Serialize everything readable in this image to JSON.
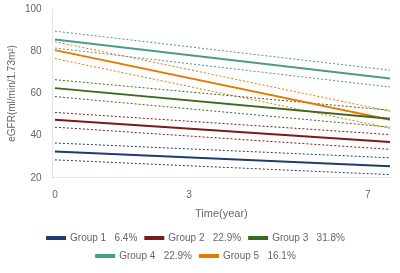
{
  "chart_data": {
    "type": "line",
    "x_label": "Time(year)",
    "y_label": "eGFR(ml/min/1.73m²)",
    "x": [
      0,
      7.5
    ],
    "series": [
      {
        "name": "Group 1   6.4%",
        "color": "#1b3d6e",
        "values": [
          32.5,
          25.5
        ],
        "ci_upper": [
          36.5,
          29.5
        ],
        "ci_lower": [
          28.5,
          21.5
        ]
      },
      {
        "name": "Group 2   22.9%",
        "color": "#7b1a1a",
        "values": [
          47.5,
          37.0
        ],
        "ci_upper": [
          51.0,
          40.5
        ],
        "ci_lower": [
          44.0,
          33.5
        ]
      },
      {
        "name": "Group 3   31.8%",
        "color": "#3a6b1a",
        "values": [
          62.5,
          48.0
        ],
        "ci_upper": [
          66.5,
          52.0
        ],
        "ci_lower": [
          58.5,
          44.0
        ]
      },
      {
        "name": "Group 4   22.9%",
        "color": "#4a9b8b",
        "values": [
          85.5,
          67.0
        ],
        "ci_upper": [
          89.5,
          71.0
        ],
        "ci_lower": [
          81.5,
          63.0
        ]
      },
      {
        "name": "Group 5   16.1%",
        "color": "#e87800",
        "values": [
          80.5,
          47.5
        ],
        "ci_upper": [
          84.5,
          51.5
        ],
        "ci_lower": [
          76.5,
          43.5
        ]
      }
    ],
    "xlim": [
      -0.05,
      7.5
    ],
    "xticks": [
      0,
      3,
      7
    ],
    "ylim": [
      20,
      100
    ],
    "yticks": [
      20,
      40,
      60,
      80,
      100
    ],
    "grid": false,
    "legend": "bottom"
  }
}
